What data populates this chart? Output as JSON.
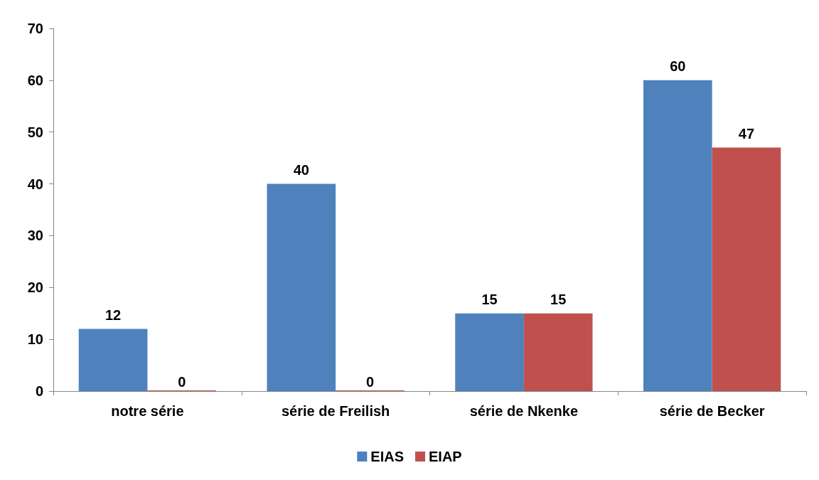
{
  "chart_data": {
    "type": "bar",
    "categories": [
      "notre série",
      "série de Freilish",
      "série de Nkenke",
      "série de Becker"
    ],
    "series": [
      {
        "name": "EIAS",
        "color": "#4f81bd",
        "values": [
          12,
          40,
          15,
          60
        ]
      },
      {
        "name": "EIAP",
        "color": "#c0504d",
        "values": [
          0,
          0,
          15,
          47
        ]
      }
    ],
    "ylim": [
      0,
      70
    ],
    "yticks": [
      0,
      10,
      20,
      30,
      40,
      50,
      60,
      70
    ],
    "data_labels": true,
    "legend": "bottom",
    "grid": false
  }
}
